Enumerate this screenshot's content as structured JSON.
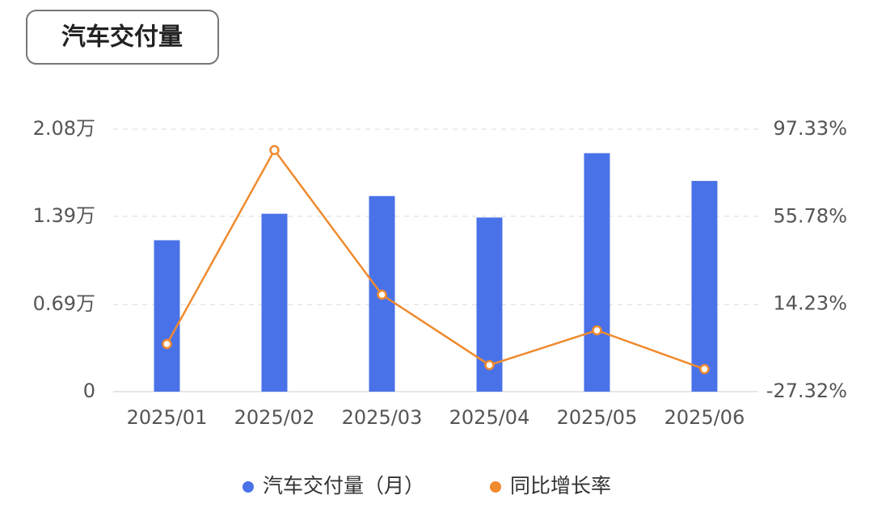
{
  "chart_data": {
    "type": "bar-line",
    "title": "汽车交付量",
    "categories": [
      "2025/01",
      "2025/02",
      "2025/03",
      "2025/04",
      "2025/05",
      "2025/06"
    ],
    "series": [
      {
        "name": "汽车交付量（月）",
        "type": "bar",
        "color": "#4a72e8",
        "values": [
          1.2,
          1.41,
          1.55,
          1.38,
          1.89,
          1.67
        ]
      },
      {
        "name": "同比增长率",
        "type": "line",
        "axis": "y2",
        "color": "#f08a2e",
        "values": [
          -4.7,
          87.4,
          18.7,
          -14.7,
          1.8,
          -16.6
        ]
      }
    ],
    "ylim": [
      0,
      2.08
    ],
    "yticks": [
      0,
      {
        "value": 0.69,
        "label": "0.69万"
      },
      {
        "value": 1.39,
        "label": "1.39万"
      },
      {
        "value": 2.08,
        "label": "2.08万"
      }
    ],
    "y2lim": [
      -27.32,
      97.33
    ],
    "y2ticks": [
      {
        "value": -27.32,
        "label": "-27.32%"
      },
      {
        "value": 14.23,
        "label": "14.23%"
      },
      {
        "value": 55.78,
        "label": "55.78%"
      },
      {
        "value": 97.33,
        "label": "97.33%"
      }
    ],
    "grid": true,
    "legend": "bottom"
  }
}
